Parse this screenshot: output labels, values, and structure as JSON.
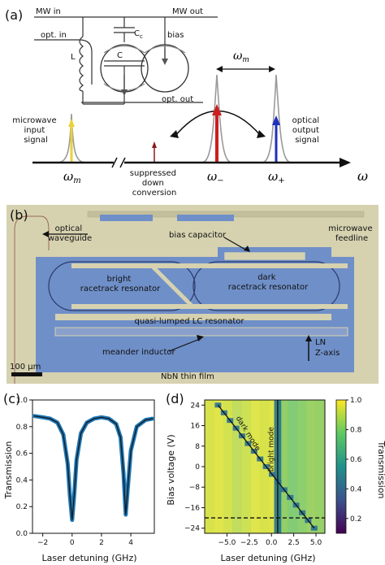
{
  "panel_a": {
    "label": "(a)",
    "mw_in": "MW in",
    "mw_out": "MW out",
    "opt_in": "opt. in",
    "opt_out": "opt. out",
    "cc": "C",
    "cc_sub": "c",
    "c": "C",
    "l": "L",
    "bias": "bias",
    "omega_m_top": "ω",
    "omega_m_top_sub": "m",
    "microwave_input_signal": [
      "microwave",
      "input",
      "signal"
    ],
    "optical_output_signal": [
      "optical",
      "output",
      "signal"
    ],
    "suppressed_down_conversion": [
      "suppressed",
      "down",
      "conversion"
    ],
    "omega_m_axis": "ω",
    "omega_m_axis_sub": "m",
    "omega_minus": "ω",
    "omega_minus_sub": "−",
    "omega_plus": "ω",
    "omega_plus_sub": "+",
    "omega_axis": "ω",
    "colors": {
      "mw": "#e8d23a",
      "red": "#cc1f1f",
      "blue": "#1f2fbf",
      "darkred": "#8b1a1a",
      "gray": "#9a9a9a"
    }
  },
  "panel_b": {
    "label": "(b)",
    "optical_waveguide": [
      "optical",
      "waveguide"
    ],
    "bias_capacitor": "bias capacitor",
    "microwave_feedline": [
      "microwave",
      "feedline"
    ],
    "bright_racetrack": [
      "bright",
      "racetrack resonator"
    ],
    "dark_racetrack": [
      "dark",
      "racetrack resonator"
    ],
    "quasi_lumped": "quasi-lumped LC resonator",
    "meander_inductor": "meander inductor",
    "ln_z_axis": [
      "LN",
      "Z-axis"
    ],
    "scale_bar": "100 μm",
    "nbn": "NbN thin film",
    "colors": {
      "film": "#d6d2b0",
      "ln": "#6f8fc8",
      "pad": "#c8c4a0"
    }
  },
  "panel_c": {
    "label": "(c)",
    "chart_data": {
      "type": "line",
      "xlabel": "Laser detuning (GHz)",
      "ylabel": "Transmission",
      "xlim": [
        -2.7,
        5.6
      ],
      "ylim": [
        0.0,
        1.0
      ],
      "xticks": [
        "−2",
        "0",
        "2",
        "4"
      ],
      "yticks": [
        "0.0",
        "0.2",
        "0.4",
        "0.6",
        "0.8",
        "1.0"
      ],
      "series": [
        {
          "values": [
            {
              "x": -2.6,
              "y": 0.88
            },
            {
              "x": -2.0,
              "y": 0.87
            },
            {
              "x": -1.5,
              "y": 0.86
            },
            {
              "x": -1.0,
              "y": 0.83
            },
            {
              "x": -0.6,
              "y": 0.74
            },
            {
              "x": -0.3,
              "y": 0.52
            },
            {
              "x": -0.15,
              "y": 0.28
            },
            {
              "x": 0.0,
              "y": 0.1
            },
            {
              "x": 0.15,
              "y": 0.3
            },
            {
              "x": 0.3,
              "y": 0.55
            },
            {
              "x": 0.6,
              "y": 0.75
            },
            {
              "x": 1.0,
              "y": 0.83
            },
            {
              "x": 1.5,
              "y": 0.86
            },
            {
              "x": 2.0,
              "y": 0.87
            },
            {
              "x": 2.5,
              "y": 0.86
            },
            {
              "x": 3.0,
              "y": 0.82
            },
            {
              "x": 3.3,
              "y": 0.72
            },
            {
              "x": 3.5,
              "y": 0.45
            },
            {
              "x": 3.65,
              "y": 0.14
            },
            {
              "x": 3.8,
              "y": 0.35
            },
            {
              "x": 4.0,
              "y": 0.62
            },
            {
              "x": 4.4,
              "y": 0.8
            },
            {
              "x": 5.0,
              "y": 0.85
            },
            {
              "x": 5.5,
              "y": 0.86
            }
          ]
        }
      ]
    },
    "colors": {
      "data": "#1f77b4",
      "fit": "#111111"
    }
  },
  "panel_d": {
    "label": "(d)",
    "chart_data": {
      "type": "heatmap",
      "xlabel": "Laser detuning (GHz)",
      "ylabel": "Bias voltage (V)",
      "colorbar_label": "Transmission",
      "xlim": [
        -7.5,
        6
      ],
      "ylim": [
        -26,
        26
      ],
      "xticks": [
        "−5.0",
        "−2.5",
        "0.0",
        "2.5",
        "5.0"
      ],
      "yticks": [
        "24",
        "16",
        "8",
        "0",
        "−8",
        "−16",
        "−24"
      ],
      "colorbar_ticks": [
        "0.2",
        "0.4",
        "0.6",
        "0.8",
        "1.0"
      ],
      "crb_range": [
        0.1,
        1.0
      ],
      "bright_mode_x": 0.7,
      "dark_mode_line": {
        "x_start": -6.0,
        "y_start": 24.0,
        "x_end": 4.8,
        "y_end": -24.0
      },
      "dashed_line_y": -20,
      "annotations": [
        "dark mode",
        "bright mode"
      ]
    }
  }
}
